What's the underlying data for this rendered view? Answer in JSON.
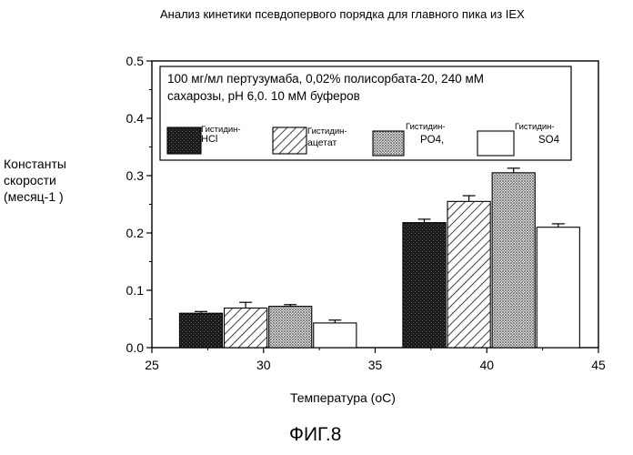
{
  "chart_data": {
    "type": "bar",
    "title": "Анализ кинетики псевдопервого порядка для главного пика из IEX",
    "xlabel": "Температура (оС)",
    "ylabel_lines": [
      "Константы",
      "скорости",
      "(месяц-1 )"
    ],
    "xlim": [
      25,
      45
    ],
    "ylim": [
      0.0,
      0.5
    ],
    "xticks": [
      "25",
      "30",
      "35",
      "40",
      "45"
    ],
    "yticks": [
      "0.0",
      "0.1",
      "0.2",
      "0.3",
      "0.4",
      "0.5"
    ],
    "annotation": [
      "100 мг/мл пертузумаба, 0,02% полисорбата-20, 240 мМ",
      "сахарозы, рН 6,0. 10 мМ буферов"
    ],
    "categories": [
      "30",
      "40"
    ],
    "series": [
      {
        "name": "Гистидин-HCl",
        "legend_lines": [
          "Гистидин-",
          "HCl"
        ],
        "pattern": "dark",
        "x": [
          27.2,
          37.2
        ],
        "values": [
          0.06,
          0.218
        ],
        "errors": [
          0.003,
          0.006
        ]
      },
      {
        "name": "Гистидин-ацетат",
        "legend_lines": [
          "Гистидин-",
          "ацетат"
        ],
        "pattern": "hatch",
        "x": [
          29.2,
          39.2
        ],
        "values": [
          0.069,
          0.255
        ],
        "errors": [
          0.01,
          0.01
        ]
      },
      {
        "name": "Гистидин-PO4",
        "legend_lines": [
          "Гистидин-",
          "PO4,"
        ],
        "pattern": "dots",
        "x": [
          31.2,
          41.2
        ],
        "values": [
          0.072,
          0.305
        ],
        "errors": [
          0.003,
          0.008
        ]
      },
      {
        "name": "Гистидин-SO4",
        "legend_lines": [
          "Гистидин-",
          "SO4"
        ],
        "pattern": "white",
        "x": [
          33.2,
          43.2
        ],
        "values": [
          0.043,
          0.21
        ],
        "errors": [
          0.005,
          0.006
        ]
      }
    ]
  },
  "figure_label": "ФИГ.8"
}
